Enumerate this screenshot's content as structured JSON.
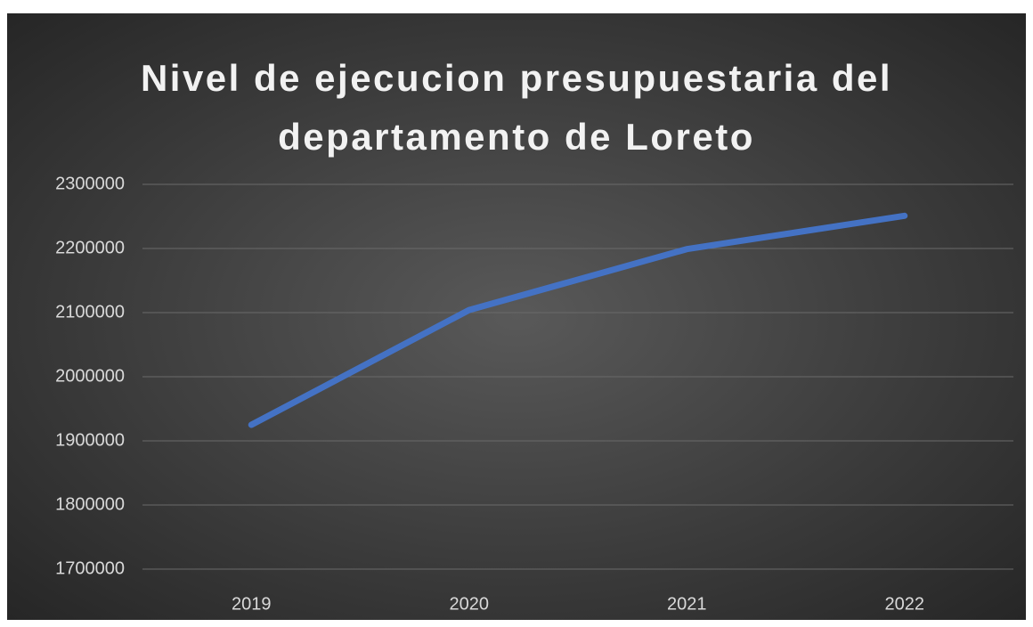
{
  "chart_data": {
    "type": "line",
    "title": "Nivel de ejecucion presupuestaria del departamento de Loreto",
    "categories": [
      "2019",
      "2020",
      "2021",
      "2022"
    ],
    "series": [
      {
        "name": "Nivel de ejecucion",
        "color": "#4472c4",
        "values": [
          1925000,
          2104000,
          2199000,
          2251000
        ]
      }
    ],
    "ylim": [
      1700000,
      2300000
    ],
    "yticks": [
      1700000,
      1800000,
      1900000,
      2000000,
      2100000,
      2200000,
      2300000
    ],
    "grid": true
  }
}
